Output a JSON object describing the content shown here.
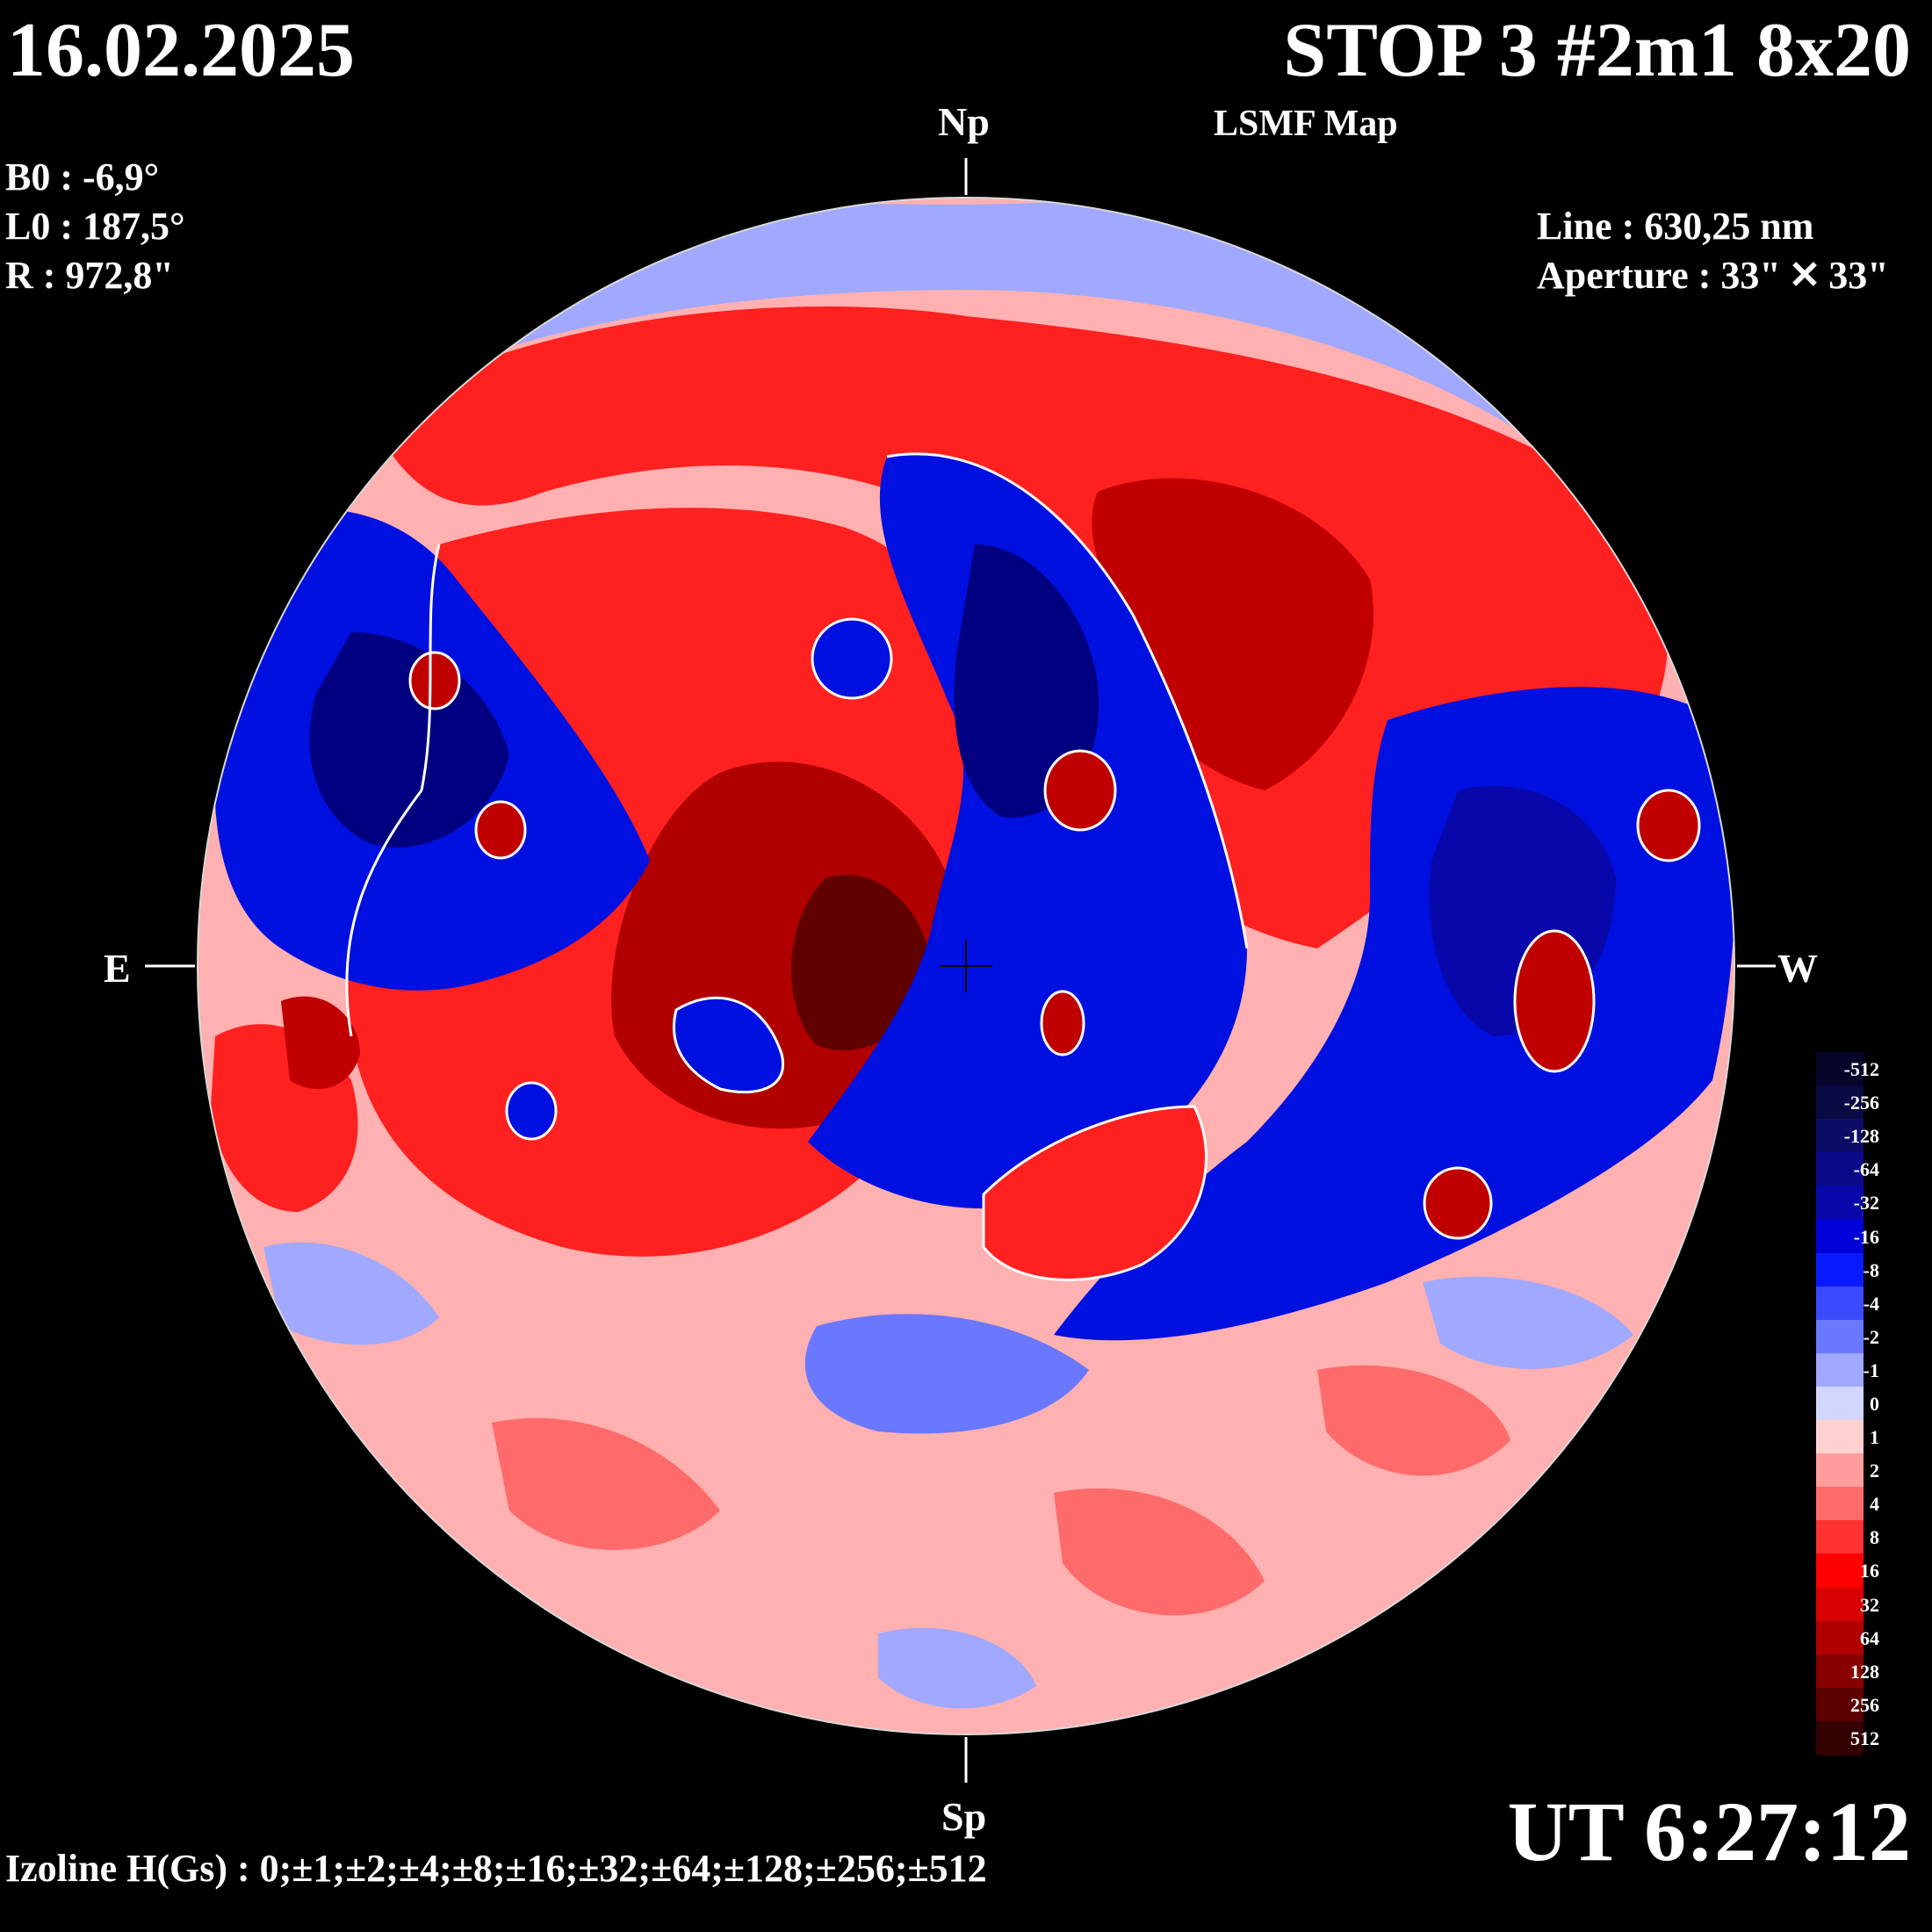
{
  "header": {
    "date": "16.02.2025",
    "title": "STOP 3 #2m1 8x20",
    "subtitle": "LSMF  Map"
  },
  "parameters": {
    "b0": "B0 : -6,9°",
    "l0": "L0 : 187,5°",
    "r": "R  : 972,8\"",
    "line": "Line :  630,25 nm",
    "aperture": "Aperture : 33\" ✕ 33\""
  },
  "directions": {
    "north": "Np",
    "south": "Sp",
    "east": "E",
    "west": "W"
  },
  "footer": {
    "time": "UT 6:27:12",
    "izoline": "Izoline H(Gs) : 0;±1;±2;±4;±8;±16;±32;±64;±128;±256;±512"
  },
  "legend": {
    "levels": [
      "-512",
      "-256",
      "-128",
      "-64",
      "-32",
      "-16",
      "-8",
      "-4",
      "-2",
      "-1",
      "0",
      "1",
      "2",
      "4",
      "8",
      "16",
      "32",
      "64",
      "128",
      "256",
      "512"
    ],
    "colors": [
      "#05052a",
      "#0a0a44",
      "#0c0c66",
      "#0a0a88",
      "#0808aa",
      "#0000d8",
      "#0a1aff",
      "#3a4aff",
      "#6a78ff",
      "#a0a8ff",
      "#d2d6ff",
      "#ffd0d0",
      "#ff9c9c",
      "#ff6a6a",
      "#ff3232",
      "#ff0000",
      "#d80000",
      "#b00000",
      "#880000",
      "#5c0000",
      "#340000"
    ]
  },
  "map_colors": {
    "disk_background": "#ffb0b0",
    "positive_strong": "#c00000",
    "positive": "#ff2020",
    "negative": "#0010e0",
    "negative_strong": "#000080",
    "zero_contour": "#ffffff"
  }
}
